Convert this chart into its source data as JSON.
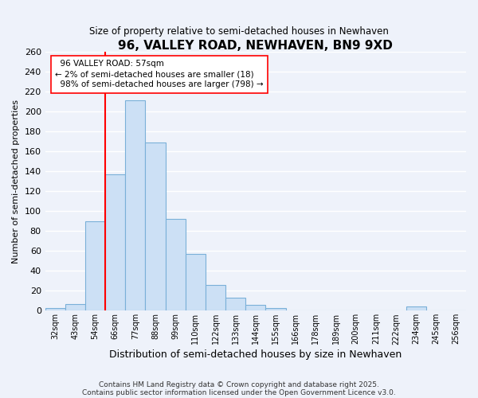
{
  "title": "96, VALLEY ROAD, NEWHAVEN, BN9 9XD",
  "subtitle": "Size of property relative to semi-detached houses in Newhaven",
  "xlabel": "Distribution of semi-detached houses by size in Newhaven",
  "ylabel": "Number of semi-detached properties",
  "bar_color": "#cce0f5",
  "bar_edge_color": "#7ab0d8",
  "background_color": "#eef2fa",
  "grid_color": "#ffffff",
  "categories": [
    "32sqm",
    "43sqm",
    "54sqm",
    "66sqm",
    "77sqm",
    "88sqm",
    "99sqm",
    "110sqm",
    "122sqm",
    "133sqm",
    "144sqm",
    "155sqm",
    "166sqm",
    "178sqm",
    "189sqm",
    "200sqm",
    "211sqm",
    "222sqm",
    "234sqm",
    "245sqm",
    "256sqm"
  ],
  "values": [
    3,
    7,
    90,
    137,
    211,
    169,
    92,
    57,
    26,
    13,
    6,
    3,
    0,
    0,
    0,
    0,
    0,
    0,
    4,
    0,
    0
  ],
  "ylim": [
    0,
    260
  ],
  "yticks": [
    0,
    20,
    40,
    60,
    80,
    100,
    120,
    140,
    160,
    180,
    200,
    220,
    240,
    260
  ],
  "property_label": "96 VALLEY ROAD: 57sqm",
  "pct_smaller": 2,
  "pct_larger": 98,
  "num_smaller": 18,
  "num_larger": 798,
  "vline_category_index": 2,
  "footer1": "Contains HM Land Registry data © Crown copyright and database right 2025.",
  "footer2": "Contains public sector information licensed under the Open Government Licence v3.0."
}
